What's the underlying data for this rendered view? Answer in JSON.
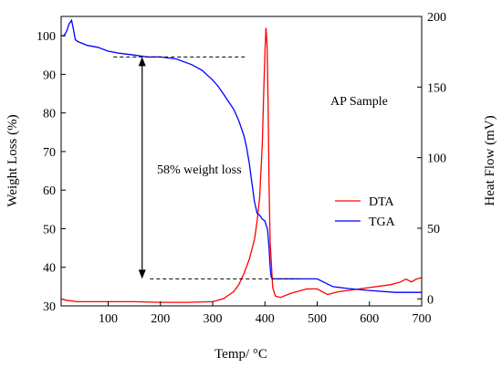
{
  "chart_data": {
    "type": "line",
    "title": "",
    "xlabel": "Temp/ °C",
    "ylabel_left": "Weight Loss (%)",
    "ylabel_right": "Heat Flow (mV)",
    "xlim": [
      10,
      700
    ],
    "ylim_left": [
      30,
      105
    ],
    "ylim_right": [
      -5,
      200
    ],
    "x_ticks": [
      100,
      200,
      300,
      400,
      500,
      600,
      700
    ],
    "y_left_ticks": [
      30,
      40,
      50,
      60,
      70,
      80,
      90,
      100
    ],
    "y_right_ticks": [
      0,
      50,
      100,
      150,
      200
    ],
    "grid": false,
    "legend_position": "right-middle",
    "series": [
      {
        "name": "DTA",
        "axis": "right",
        "color": "#ff0000",
        "x": [
          10,
          20,
          40,
          60,
          100,
          150,
          200,
          250,
          300,
          320,
          340,
          350,
          360,
          370,
          380,
          385,
          390,
          395,
          398,
          400,
          402,
          404,
          406,
          408,
          410,
          415,
          420,
          430,
          450,
          480,
          500,
          510,
          520,
          540,
          560,
          600,
          640,
          660,
          670,
          680,
          690,
          700
        ],
        "y": [
          0,
          -1,
          -2,
          -2,
          -2,
          -2,
          -2.5,
          -2.5,
          -2,
          0,
          5,
          10,
          18,
          28,
          42,
          55,
          72,
          110,
          150,
          175,
          192,
          180,
          140,
          80,
          40,
          8,
          2,
          1,
          4,
          7,
          7,
          5,
          3,
          5,
          6,
          8,
          10,
          12,
          14,
          12,
          14,
          15
        ]
      },
      {
        "name": "TGA",
        "axis": "left",
        "color": "#0000ff",
        "x": [
          10,
          15,
          20,
          25,
          30,
          33,
          37,
          42,
          60,
          80,
          100,
          120,
          150,
          175,
          200,
          230,
          260,
          280,
          300,
          310,
          320,
          330,
          340,
          350,
          360,
          365,
          370,
          375,
          380,
          385,
          390,
          395,
          400,
          402,
          405,
          408,
          410,
          412,
          415,
          420,
          450,
          500,
          530,
          560,
          600,
          650,
          700
        ],
        "y": [
          100,
          100,
          101,
          103,
          104,
          102,
          99,
          98.5,
          97.5,
          97,
          96,
          95.5,
          95,
          94.5,
          94.5,
          94,
          92.5,
          91,
          88.5,
          87,
          85,
          83,
          81,
          78,
          74,
          71,
          67,
          62,
          57,
          54,
          53.5,
          52.5,
          52,
          51,
          50,
          45,
          40,
          37.5,
          37,
          37,
          37,
          37,
          35,
          34.5,
          34,
          33.5,
          33.5
        ]
      }
    ],
    "annotations": {
      "sample_label": "AP Sample",
      "weight_loss_label": "58% weight loss",
      "upper_line": {
        "x_start": 110,
        "x_end": 365,
        "y": 94.5
      },
      "lower_line": {
        "x_start": 180,
        "x_end": 465,
        "y": 37
      },
      "arrow": {
        "x": 165,
        "y_start": 94.5,
        "y_end": 37
      }
    }
  }
}
